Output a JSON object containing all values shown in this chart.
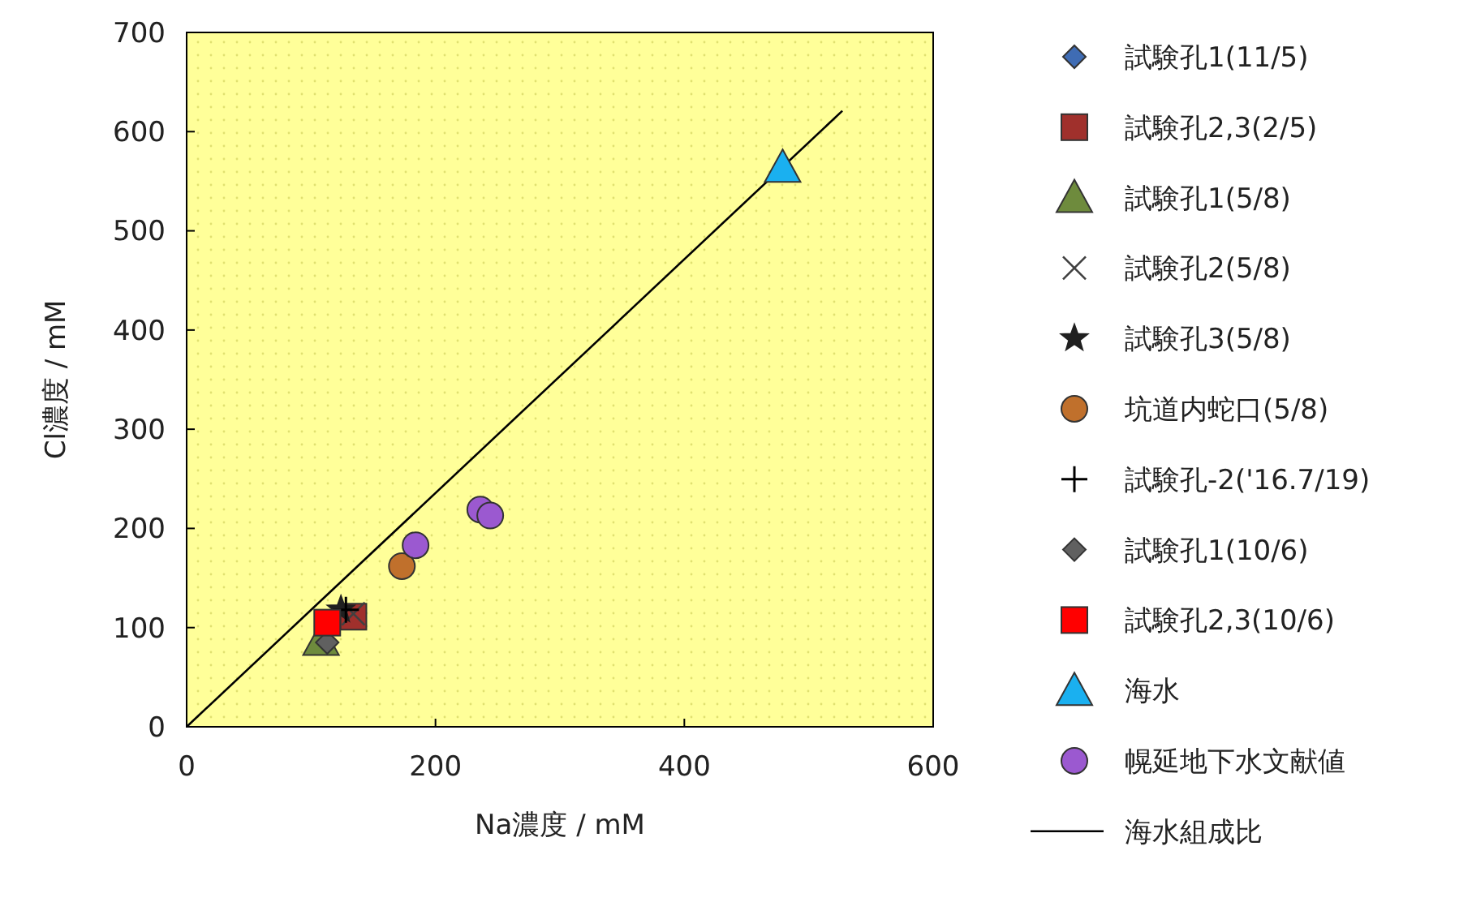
{
  "chart_data": {
    "type": "scatter",
    "xlabel": "Na濃度 / mM",
    "ylabel": "Cl濃度 / mM",
    "xlim": [
      0,
      600
    ],
    "ylim": [
      0,
      700
    ],
    "xticks": [
      0,
      200,
      400,
      600
    ],
    "yticks": [
      0,
      100,
      200,
      300,
      400,
      500,
      600,
      700
    ],
    "grid": false,
    "legend": "right",
    "series": [
      {
        "name": "試験孔1(11/5)",
        "color": "#3f6cb4",
        "marker": "diamond"
      },
      {
        "name": "試験孔2,3(2/5)",
        "color": "#a0302c",
        "marker": "square",
        "x": [
          134
        ],
        "values": [
          111
        ]
      },
      {
        "name": "試験孔1(5/8)",
        "color": "#6e8b3d",
        "marker": "triangle",
        "x": [
          108
        ],
        "values": [
          87
        ]
      },
      {
        "name": "試験孔2(5/8)",
        "color": "#404040",
        "marker": "x",
        "x": [
          134
        ],
        "values": [
          114
        ]
      },
      {
        "name": "試験孔3(5/8)",
        "color": "#202020",
        "marker": "star",
        "x": [
          124
        ],
        "values": [
          118
        ]
      },
      {
        "name": "坑道内蛇口(5/8)",
        "color": "#c0702c",
        "marker": "circle",
        "x": [
          173
        ],
        "values": [
          162
        ]
      },
      {
        "name": "試験孔-2('16.7/19)",
        "color": "#000000",
        "marker": "cross",
        "x": [
          128
        ],
        "values": [
          118
        ]
      },
      {
        "name": "試験孔1(10/6)",
        "color": "#606060",
        "marker": "diamond",
        "x": [
          113
        ],
        "values": [
          85
        ]
      },
      {
        "name": "試験孔2,3(10/6)",
        "color": "#ff0000",
        "marker": "square",
        "x": [
          113
        ],
        "values": [
          105
        ]
      },
      {
        "name": "海水",
        "color": "#1ab0f0",
        "marker": "triangle",
        "x": [
          479
        ],
        "values": [
          564
        ]
      },
      {
        "name": "幌延地下水文献値",
        "color": "#9b59d0",
        "marker": "circle",
        "x": [
          184,
          236,
          244
        ],
        "values": [
          183,
          219,
          213
        ]
      },
      {
        "name": "海水組成比",
        "type": "line",
        "color": "#000000",
        "marker": "none",
        "line_style": "solid",
        "x": [
          0,
          527
        ],
        "values": [
          0,
          621
        ]
      }
    ]
  }
}
